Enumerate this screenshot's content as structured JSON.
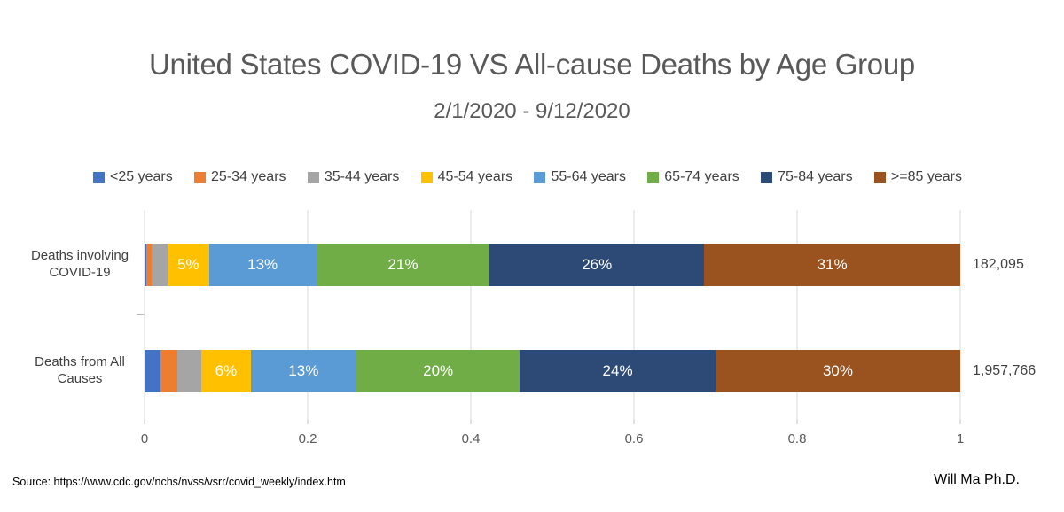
{
  "chart_data": {
    "type": "bar",
    "orientation": "horizontal",
    "stacked": true,
    "title": "United States COVID-19 VS All-cause Deaths by Age Group",
    "subtitle": "2/1/2020 - 9/12/2020",
    "legend_position": "top",
    "grid": true,
    "age_groups": [
      "<25 years",
      "25-34 years",
      "35-44 years",
      "45-54 years",
      "55-64 years",
      "65-74 years",
      "75-84 years",
      ">=85 years"
    ],
    "colors": [
      "#4472C4",
      "#ED7D31",
      "#A5A5A5",
      "#FFC000",
      "#5B9BD5",
      "#70AD47",
      "#2C4A75",
      "#9A521E"
    ],
    "categories": [
      "Deaths involving COVID-19",
      "Deaths from All Causes"
    ],
    "xlabel": "",
    "ylabel": "",
    "xlim": [
      0,
      1
    ],
    "x_ticks": [
      0,
      0.2,
      0.4,
      0.6,
      0.8,
      1
    ],
    "x_tick_labels": [
      "0",
      "0.2",
      "0.4",
      "0.6",
      "0.8",
      "1"
    ],
    "value_unit": "percent of total deaths",
    "rows": [
      {
        "category": "Deaths involving COVID-19",
        "category_lines": [
          "Deaths involving",
          "COVID-19"
        ],
        "values": [
          0.2,
          0.7,
          1.9,
          5,
          13,
          21,
          26,
          31
        ],
        "labels": [
          "",
          "",
          "",
          "5%",
          "13%",
          "21%",
          "26%",
          "31%"
        ],
        "total": "182,095"
      },
      {
        "category": "Deaths from All Causes",
        "category_lines": [
          "Deaths from All",
          "Causes"
        ],
        "values": [
          2,
          2,
          3,
          6,
          13,
          20,
          24,
          30
        ],
        "labels": [
          "",
          "",
          "",
          "6%",
          "13%",
          "20%",
          "24%",
          "30%"
        ],
        "total": "1,957,766"
      }
    ]
  },
  "footer": {
    "source": "Source: https://www.cdc.gov/nchs/nvss/vsrr/covid_weekly/index.htm",
    "author": "Will Ma  Ph.D."
  }
}
